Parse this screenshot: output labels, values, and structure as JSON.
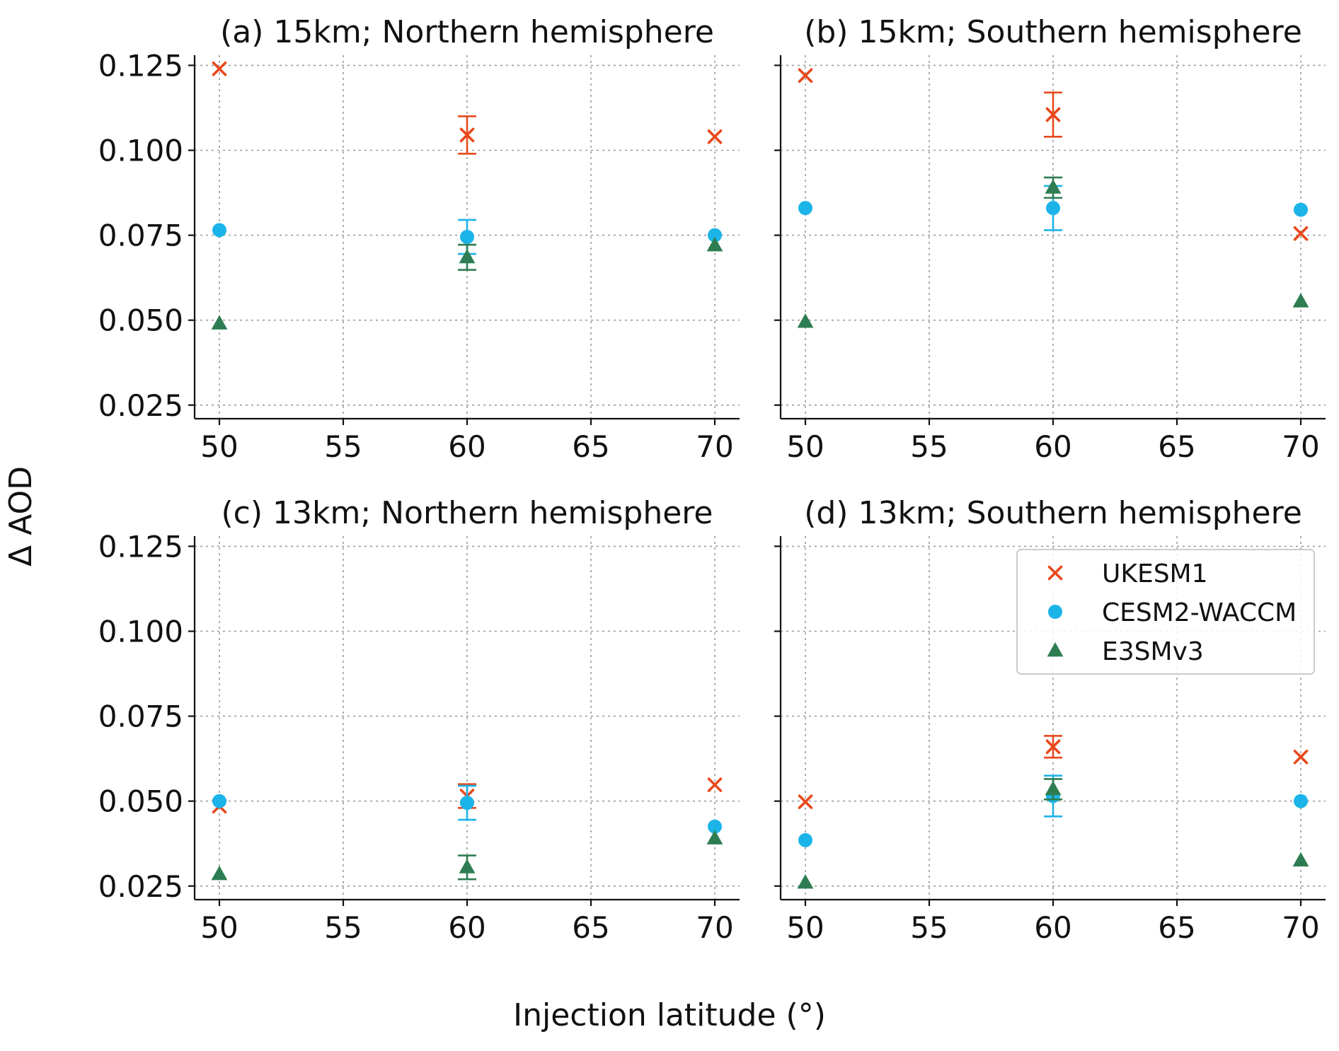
{
  "colors": {
    "UKESM1": "#e8491d",
    "CESM2-WACCM": "#1cb4e8",
    "E3SMv3": "#2e7d52"
  },
  "chart_data": {
    "type": "scatter",
    "xlabel": "Injection latitude (°)",
    "ylabel": "Δ AOD",
    "xlim": [
      49,
      71
    ],
    "ylim": [
      0.021,
      0.128
    ],
    "xticks": [
      "50",
      "55",
      "60",
      "65",
      "70"
    ],
    "yticks": [
      "0.025",
      "0.050",
      "0.075",
      "0.100",
      "0.125"
    ],
    "legend": {
      "position": "upper-right of panel (d)",
      "entries": [
        {
          "name": "UKESM1",
          "marker": "x"
        },
        {
          "name": "CESM2-WACCM",
          "marker": "circle"
        },
        {
          "name": "E3SMv3",
          "marker": "triangle"
        }
      ]
    },
    "panels": [
      {
        "title": "(a) 15km; Northern hemisphere",
        "series": [
          {
            "name": "UKESM1",
            "marker": "x",
            "points": [
              {
                "x": 50,
                "y": 0.124
              },
              {
                "x": 60,
                "y": 0.1045,
                "err": [
                  0.099,
                  0.11
                ]
              },
              {
                "x": 70,
                "y": 0.104
              }
            ]
          },
          {
            "name": "CESM2-WACCM",
            "marker": "circle",
            "points": [
              {
                "x": 50,
                "y": 0.0765
              },
              {
                "x": 60,
                "y": 0.0745,
                "err": [
                  0.0695,
                  0.0795
                ]
              },
              {
                "x": 70,
                "y": 0.075
              }
            ]
          },
          {
            "name": "E3SMv3",
            "marker": "triangle",
            "points": [
              {
                "x": 50,
                "y": 0.049
              },
              {
                "x": 60,
                "y": 0.0685,
                "err": [
                  0.0648,
                  0.0722
                ]
              },
              {
                "x": 70,
                "y": 0.072
              }
            ]
          }
        ]
      },
      {
        "title": "(b) 15km; Southern hemisphere",
        "series": [
          {
            "name": "UKESM1",
            "marker": "x",
            "points": [
              {
                "x": 50,
                "y": 0.122
              },
              {
                "x": 60,
                "y": 0.1105,
                "err": [
                  0.104,
                  0.117
                ]
              },
              {
                "x": 70,
                "y": 0.0755
              }
            ]
          },
          {
            "name": "CESM2-WACCM",
            "marker": "circle",
            "points": [
              {
                "x": 50,
                "y": 0.083
              },
              {
                "x": 60,
                "y": 0.083,
                "err": [
                  0.0765,
                  0.0895
                ]
              },
              {
                "x": 70,
                "y": 0.0825
              }
            ]
          },
          {
            "name": "E3SMv3",
            "marker": "triangle",
            "points": [
              {
                "x": 50,
                "y": 0.0495
              },
              {
                "x": 60,
                "y": 0.089,
                "err": [
                  0.086,
                  0.092
                ]
              },
              {
                "x": 70,
                "y": 0.0555
              }
            ]
          }
        ]
      },
      {
        "title": "(c) 13km; Northern hemisphere",
        "series": [
          {
            "name": "UKESM1",
            "marker": "x",
            "points": [
              {
                "x": 50,
                "y": 0.0485
              },
              {
                "x": 60,
                "y": 0.0515,
                "err": [
                  0.048,
                  0.055
                ]
              },
              {
                "x": 70,
                "y": 0.0548
              }
            ]
          },
          {
            "name": "CESM2-WACCM",
            "marker": "circle",
            "points": [
              {
                "x": 50,
                "y": 0.05
              },
              {
                "x": 60,
                "y": 0.0495,
                "err": [
                  0.0445,
                  0.0545
                ]
              },
              {
                "x": 70,
                "y": 0.0425
              }
            ]
          },
          {
            "name": "E3SMv3",
            "marker": "triangle",
            "points": [
              {
                "x": 50,
                "y": 0.0285
              },
              {
                "x": 60,
                "y": 0.0305,
                "err": [
                  0.027,
                  0.034
                ]
              },
              {
                "x": 70,
                "y": 0.039
              }
            ]
          }
        ]
      },
      {
        "title": "(d) 13km; Southern hemisphere",
        "series": [
          {
            "name": "UKESM1",
            "marker": "x",
            "points": [
              {
                "x": 50,
                "y": 0.0498
              },
              {
                "x": 60,
                "y": 0.066,
                "err": [
                  0.0628,
                  0.0692
                ]
              },
              {
                "x": 70,
                "y": 0.063
              }
            ]
          },
          {
            "name": "CESM2-WACCM",
            "marker": "circle",
            "points": [
              {
                "x": 50,
                "y": 0.0385
              },
              {
                "x": 60,
                "y": 0.0515,
                "err": [
                  0.0455,
                  0.0575
                ]
              },
              {
                "x": 70,
                "y": 0.05
              }
            ]
          },
          {
            "name": "E3SMv3",
            "marker": "triangle",
            "points": [
              {
                "x": 50,
                "y": 0.026
              },
              {
                "x": 60,
                "y": 0.0535,
                "err": [
                  0.0505,
                  0.0565
                ]
              },
              {
                "x": 70,
                "y": 0.0325
              }
            ]
          }
        ]
      }
    ]
  }
}
